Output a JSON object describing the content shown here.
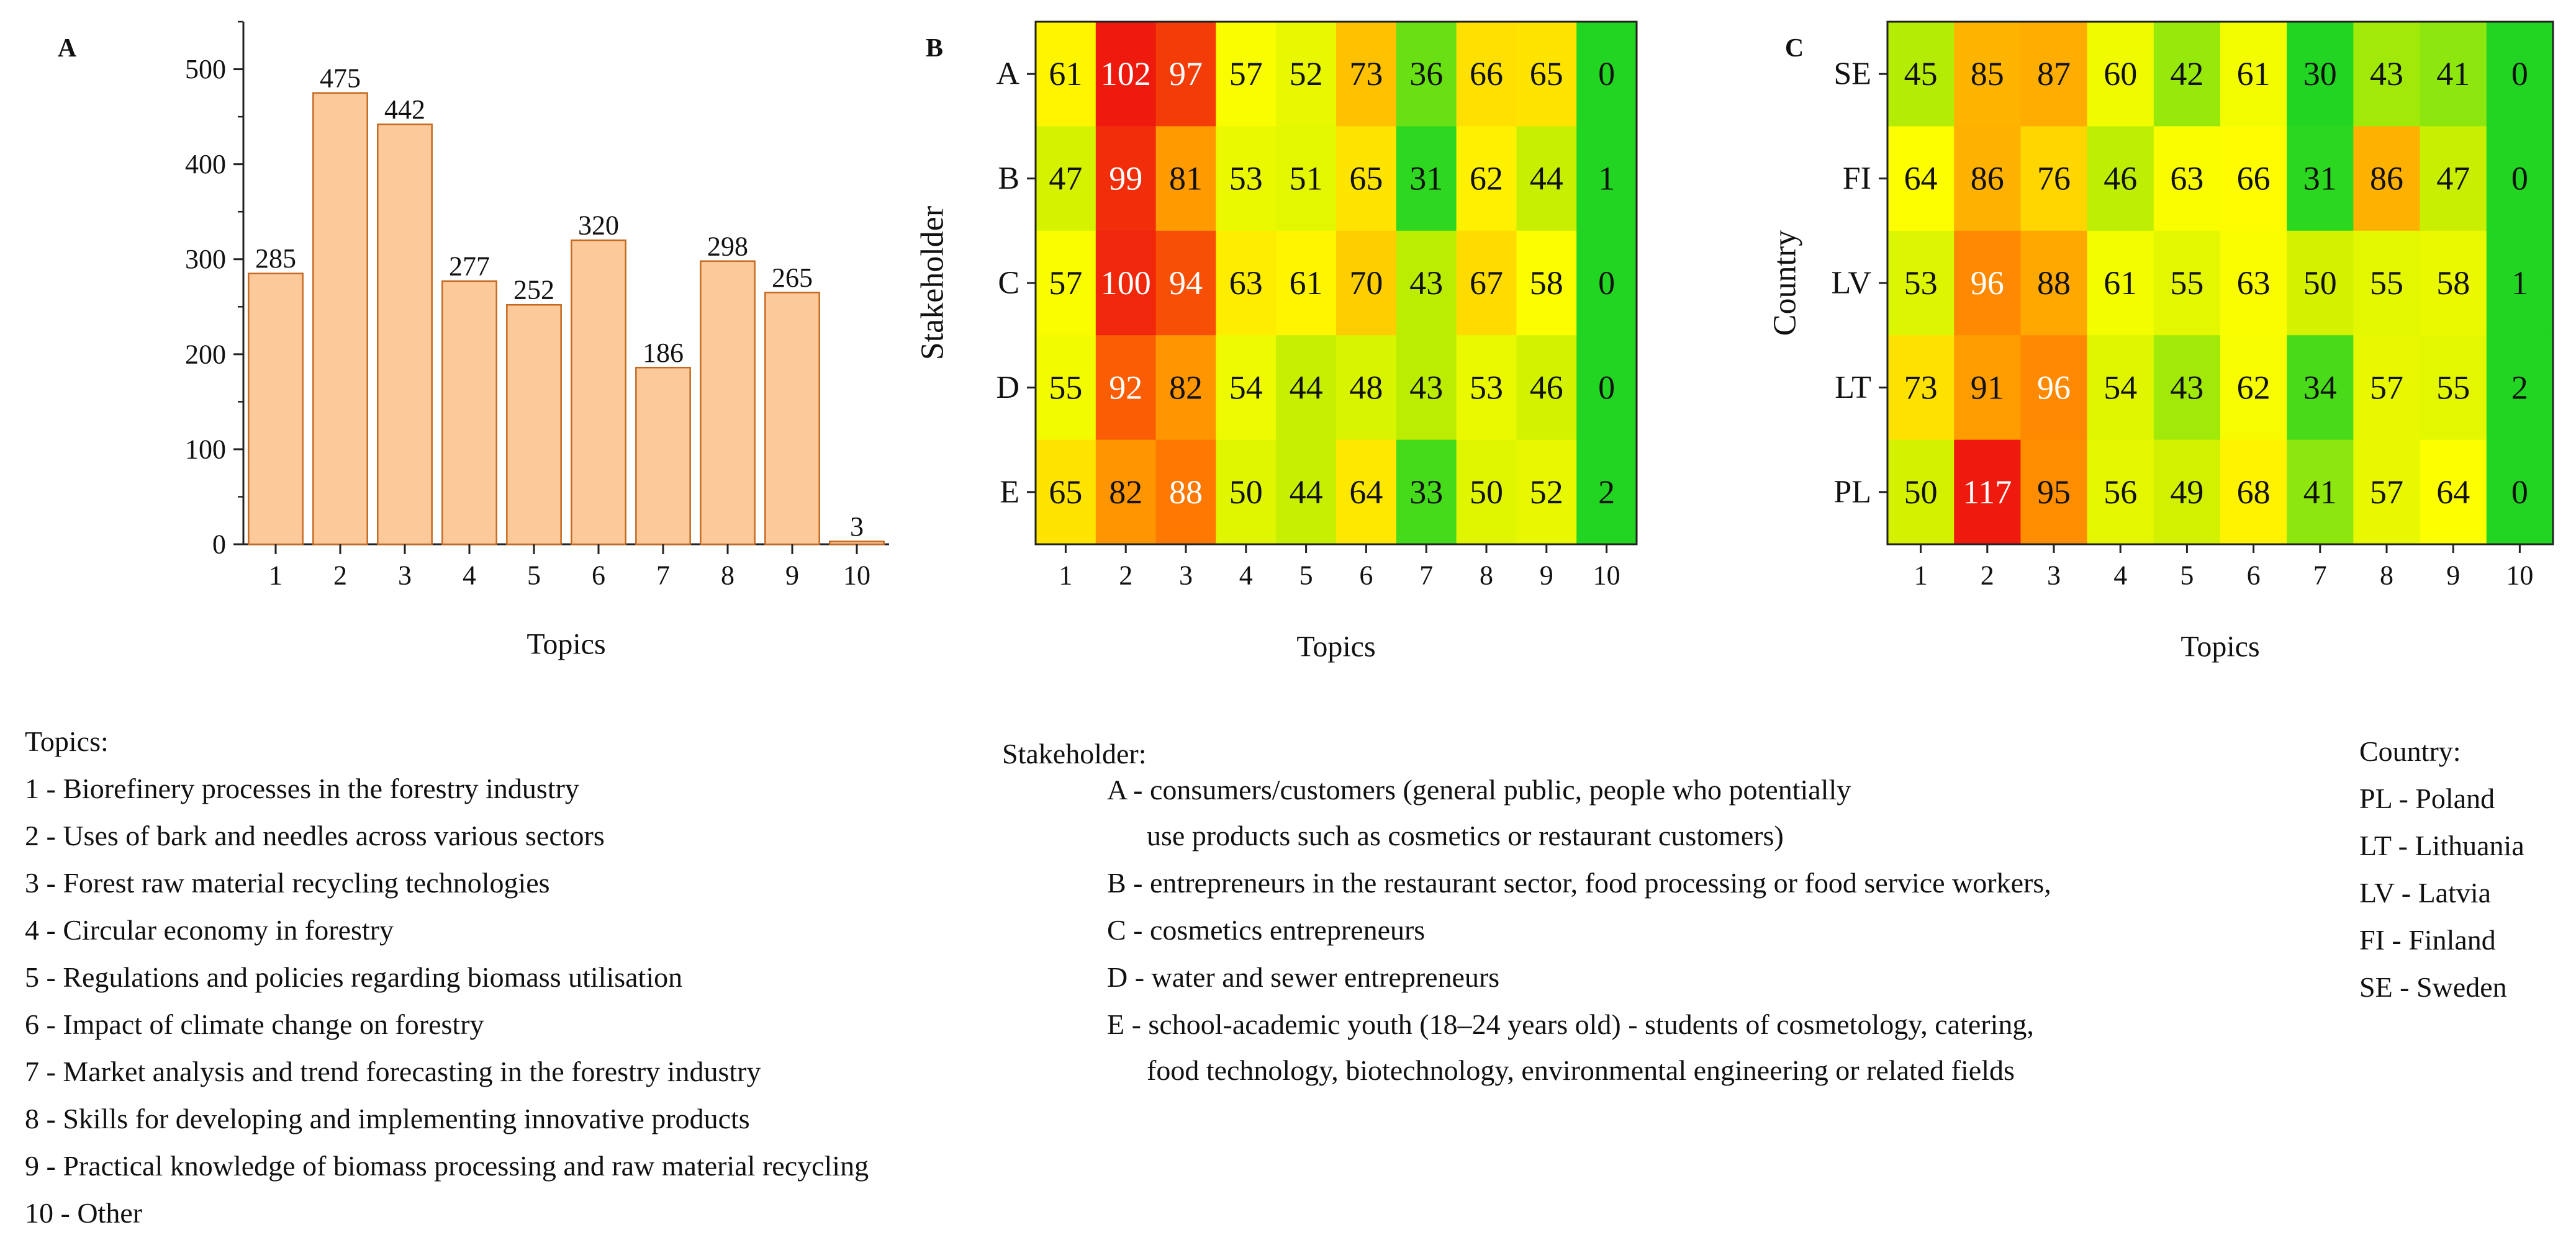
{
  "chart_data": [
    {
      "panel_label": "A",
      "type": "bar",
      "categories": [
        "1",
        "2",
        "3",
        "4",
        "5",
        "6",
        "7",
        "8",
        "9",
        "10"
      ],
      "values": [
        285,
        475,
        442,
        277,
        252,
        320,
        186,
        298,
        265,
        3
      ],
      "xlabel": "Topics",
      "ylabel": "",
      "ylim": [
        0,
        550
      ],
      "yticks": [
        "0",
        "100",
        "200",
        "300",
        "400",
        "500"
      ],
      "bar_color": "#fbc99a",
      "bar_edge_color": "#c46a22",
      "grid": false
    },
    {
      "panel_label": "B",
      "type": "heatmap",
      "x": [
        "1",
        "2",
        "3",
        "4",
        "5",
        "6",
        "7",
        "8",
        "9",
        "10"
      ],
      "y": [
        "A",
        "B",
        "C",
        "D",
        "E"
      ],
      "xlabel": "Topics",
      "ylabel": "Stakeholder",
      "values": [
        [
          61,
          102,
          97,
          57,
          52,
          73,
          36,
          66,
          65,
          0
        ],
        [
          47,
          99,
          81,
          53,
          51,
          65,
          31,
          62,
          44,
          1
        ],
        [
          57,
          100,
          94,
          63,
          61,
          70,
          43,
          67,
          58,
          0
        ],
        [
          55,
          92,
          82,
          54,
          44,
          48,
          43,
          53,
          46,
          0
        ],
        [
          65,
          82,
          88,
          50,
          44,
          64,
          33,
          50,
          52,
          2
        ]
      ],
      "colorscale": [
        "#22d522",
        "#ccf000",
        "#ffff00",
        "#ffc000",
        "#ff7b00",
        "#ee1a0d"
      ]
    },
    {
      "panel_label": "C",
      "type": "heatmap",
      "x": [
        "1",
        "2",
        "3",
        "4",
        "5",
        "6",
        "7",
        "8",
        "9",
        "10"
      ],
      "y": [
        "SE",
        "FI",
        "LV",
        "LT",
        "PL"
      ],
      "xlabel": "Topics",
      "ylabel": "Country",
      "values": [
        [
          45,
          85,
          87,
          60,
          42,
          61,
          30,
          43,
          41,
          0
        ],
        [
          64,
          86,
          76,
          46,
          63,
          66,
          31,
          86,
          47,
          0
        ],
        [
          53,
          96,
          88,
          61,
          55,
          63,
          50,
          55,
          58,
          1
        ],
        [
          73,
          91,
          96,
          54,
          43,
          62,
          34,
          57,
          55,
          2
        ],
        [
          50,
          117,
          95,
          56,
          49,
          68,
          41,
          57,
          64,
          0
        ]
      ],
      "colorscale": [
        "#22d522",
        "#ccf000",
        "#ffff00",
        "#ffc000",
        "#ff7b00",
        "#ee1a0d"
      ]
    }
  ],
  "legends": {
    "topics": {
      "title": "Topics:",
      "items": [
        "1 - Biorefinery processes in the forestry industry",
        "2 - Uses of bark and needles across various sectors",
        "3 - Forest raw material recycling technologies",
        "4 - Circular economy in forestry",
        "5 - Regulations and policies regarding biomass utilisation",
        "6 - Impact of climate change on forestry",
        "7 - Market analysis and trend forecasting in the forestry industry",
        "8 - Skills for developing and implementing innovative products",
        "9 - Practical knowledge of biomass processing and raw material recycling",
        "10 - Other"
      ]
    },
    "stakeholder": {
      "title": "Stakeholder:",
      "items": [
        "A - consumers/customers (general public, people who potentially",
        "use products such as cosmetics or restaurant customers)",
        "B - entrepreneurs in the restaurant sector, food processing or food service workers,",
        "C - cosmetics entrepreneurs",
        "D - water and sewer entrepreneurs",
        "E - school-academic youth (18–24 years old) - students of cosmetology, catering,",
        "food technology, biotechnology, environmental engineering or related fields"
      ]
    },
    "country": {
      "title": "Country:",
      "items": [
        "PL - Poland",
        "LT - Lithuania",
        "LV - Latvia",
        "FI  -  Finland",
        "SE - Sweden"
      ]
    }
  }
}
